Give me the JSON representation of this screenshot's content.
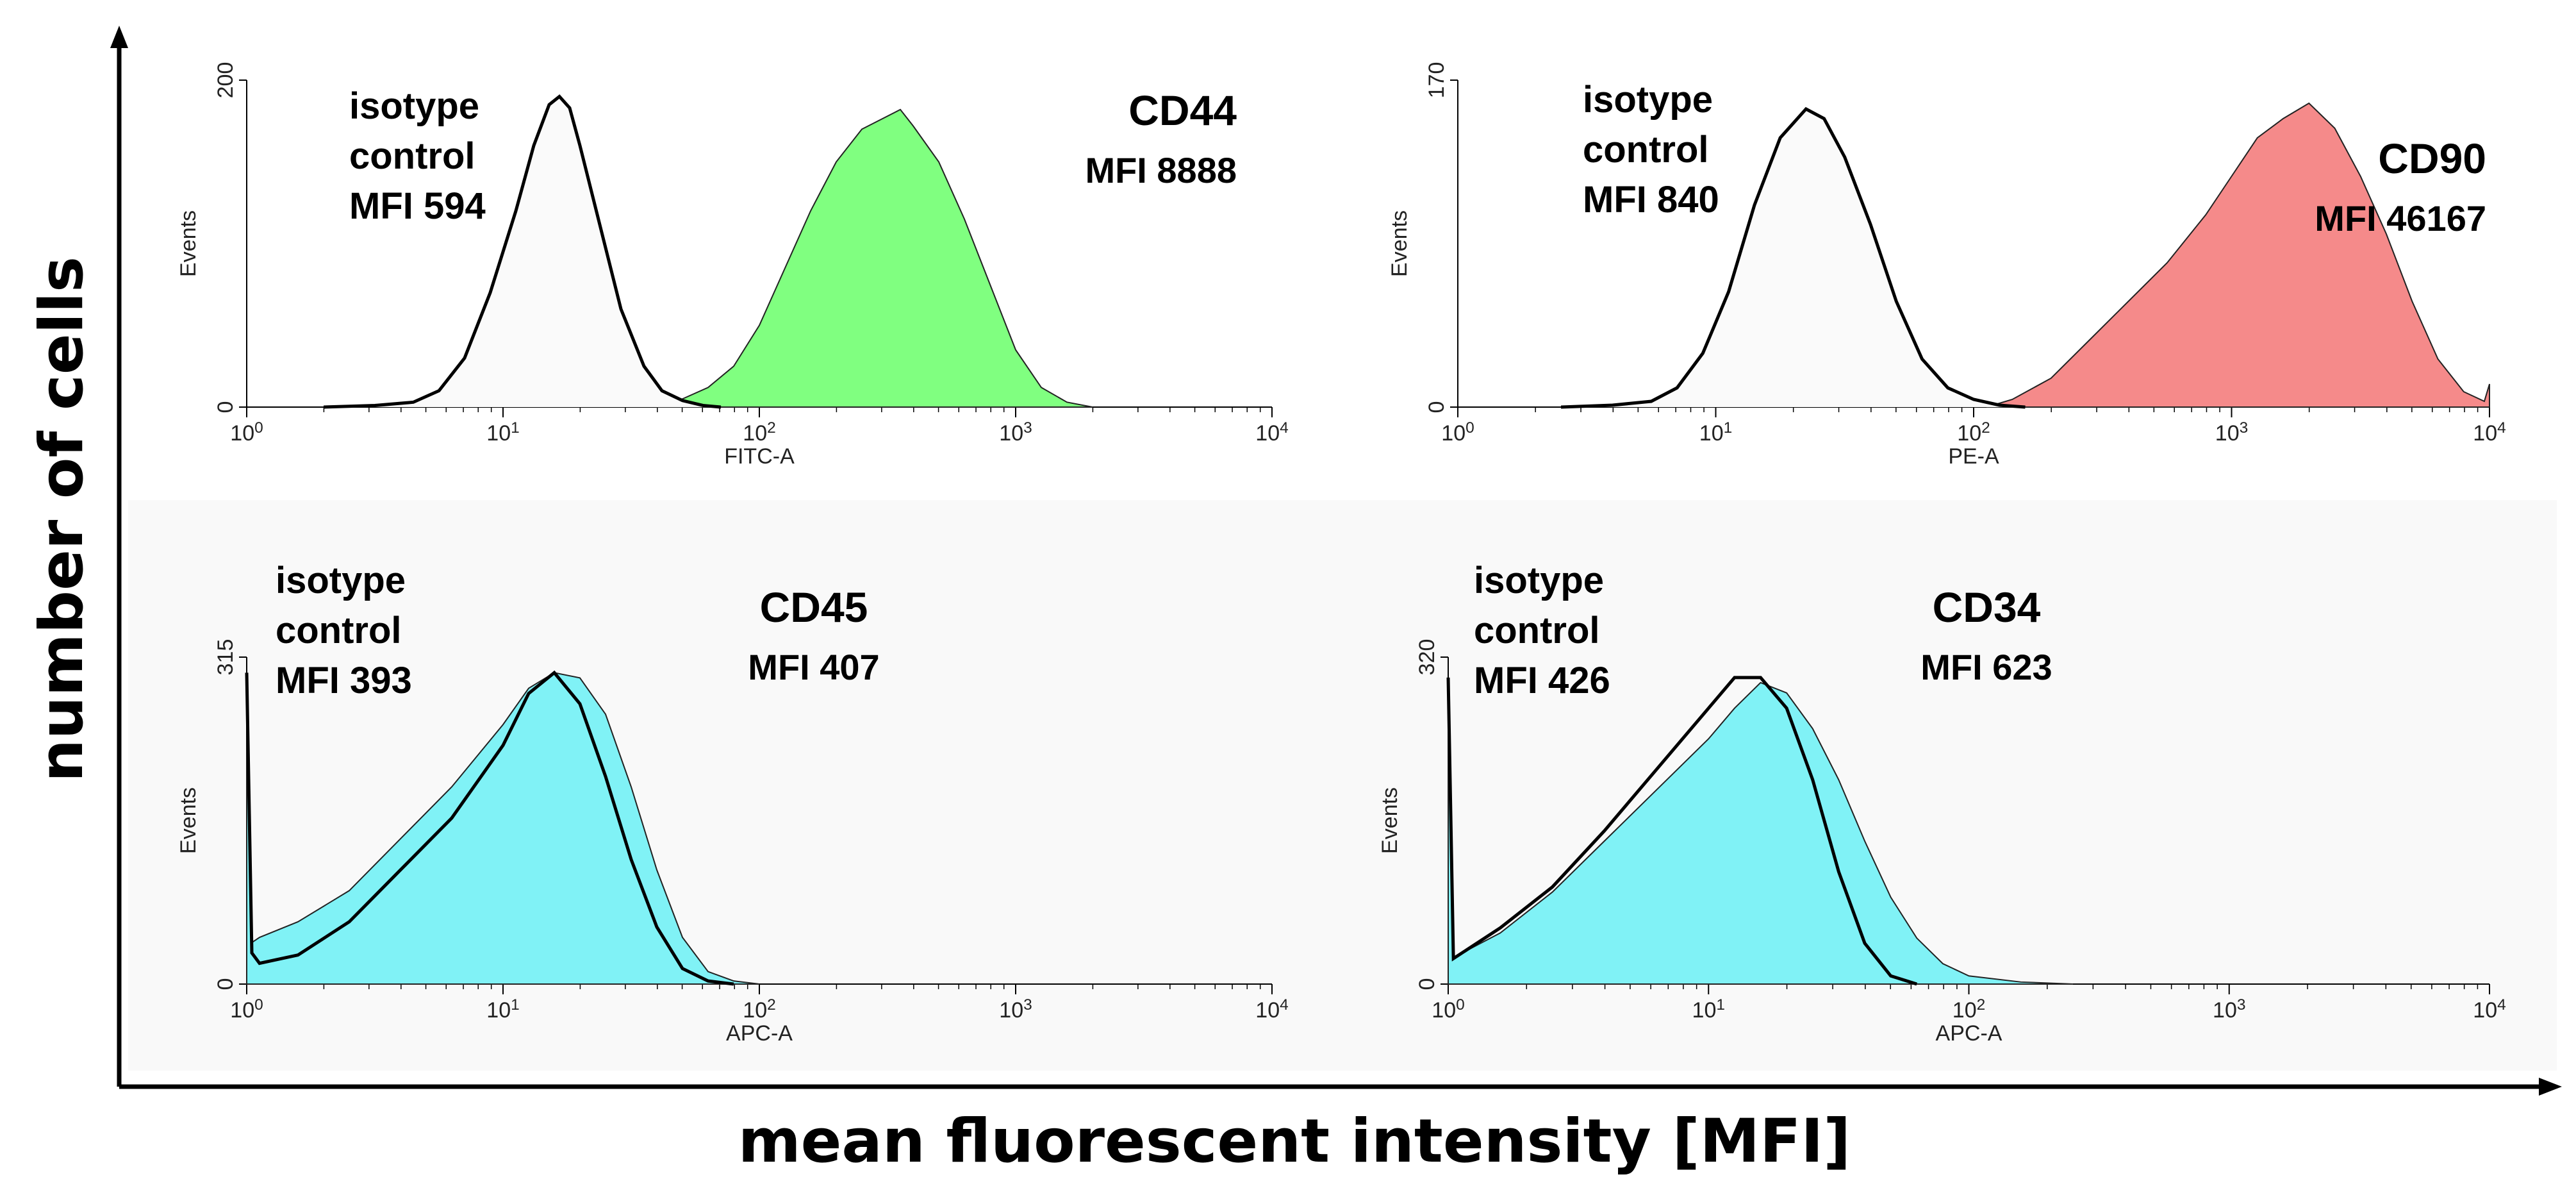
{
  "figure": {
    "ylabel": "number of cells",
    "xlabel": "mean fluorescent intensity [MFI]"
  },
  "chart_data": [
    {
      "type": "area",
      "id": "cd44",
      "marker": "CD44",
      "marker_mfi": "MFI 8888",
      "isotype_label": [
        "isotype",
        "control",
        "MFI 594"
      ],
      "channel": "FITC-A",
      "y_axis_label": "Events",
      "ylim": [
        0,
        200
      ],
      "y_ticks": [
        "0",
        "200"
      ],
      "x_scale": "log10",
      "xlim_log": [
        0,
        4
      ],
      "x_ticks": [
        {
          "base": "10",
          "exp": "0"
        },
        {
          "base": "10",
          "exp": "1"
        },
        {
          "base": "10",
          "exp": "2"
        },
        {
          "base": "10",
          "exp": "3"
        },
        {
          "base": "10",
          "exp": "4"
        }
      ],
      "fill_color": "#80ff80",
      "isotype": {
        "x_log": [
          0.3,
          0.5,
          0.65,
          0.75,
          0.85,
          0.95,
          1.05,
          1.12,
          1.18,
          1.22,
          1.26,
          1.3,
          1.38,
          1.46,
          1.55,
          1.62,
          1.7,
          1.78,
          1.85
        ],
        "y": [
          0,
          1,
          3,
          10,
          30,
          70,
          120,
          160,
          185,
          190,
          183,
          160,
          110,
          60,
          25,
          10,
          4,
          1,
          0
        ]
      },
      "sample": {
        "x_log": [
          1.6,
          1.7,
          1.8,
          1.9,
          2.0,
          2.1,
          2.2,
          2.3,
          2.4,
          2.5,
          2.55,
          2.6,
          2.7,
          2.8,
          2.9,
          3.0,
          3.1,
          3.2,
          3.3
        ],
        "y": [
          0,
          5,
          12,
          25,
          50,
          85,
          120,
          150,
          170,
          178,
          182,
          172,
          150,
          115,
          75,
          35,
          12,
          3,
          0
        ]
      }
    },
    {
      "type": "area",
      "id": "cd90",
      "marker": "CD90",
      "marker_mfi": "MFI 46167",
      "isotype_label": [
        "isotype",
        "control",
        "MFI 840"
      ],
      "channel": "PE-A",
      "y_axis_label": "Events",
      "ylim": [
        0,
        170
      ],
      "y_ticks": [
        "0",
        "170"
      ],
      "x_scale": "log10",
      "xlim_log": [
        0,
        4
      ],
      "x_ticks": [
        {
          "base": "10",
          "exp": "0"
        },
        {
          "base": "10",
          "exp": "1"
        },
        {
          "base": "10",
          "exp": "2"
        },
        {
          "base": "10",
          "exp": "3"
        },
        {
          "base": "10",
          "exp": "4"
        }
      ],
      "fill_color": "#f58a8a",
      "isotype": {
        "x_log": [
          0.4,
          0.6,
          0.75,
          0.85,
          0.95,
          1.05,
          1.15,
          1.25,
          1.35,
          1.42,
          1.5,
          1.6,
          1.7,
          1.8,
          1.9,
          2.0,
          2.1,
          2.2
        ],
        "y": [
          0,
          1,
          3,
          10,
          28,
          60,
          105,
          140,
          155,
          150,
          130,
          95,
          55,
          25,
          10,
          4,
          1,
          0
        ]
      },
      "sample": {
        "x_log": [
          2.05,
          2.15,
          2.3,
          2.45,
          2.6,
          2.75,
          2.9,
          3.0,
          3.1,
          3.2,
          3.3,
          3.4,
          3.5,
          3.6,
          3.7,
          3.8,
          3.9,
          3.98,
          4.0
        ],
        "y": [
          0,
          4,
          15,
          35,
          55,
          75,
          100,
          120,
          140,
          150,
          158,
          145,
          120,
          90,
          55,
          25,
          8,
          3,
          12
        ]
      }
    },
    {
      "type": "area",
      "id": "cd45",
      "marker": "CD45",
      "marker_mfi": "MFI 407",
      "isotype_label": [
        "isotype",
        "control",
        "MFI 393"
      ],
      "channel": "APC-A",
      "y_axis_label": "Events",
      "ylim": [
        0,
        315
      ],
      "y_ticks": [
        "0",
        "315"
      ],
      "x_scale": "log10",
      "xlim_log": [
        0,
        4
      ],
      "x_ticks": [
        {
          "base": "10",
          "exp": "0"
        },
        {
          "base": "10",
          "exp": "1"
        },
        {
          "base": "10",
          "exp": "2"
        },
        {
          "base": "10",
          "exp": "3"
        },
        {
          "base": "10",
          "exp": "4"
        }
      ],
      "fill_color": "#80f2f6",
      "isotype": {
        "x_log": [
          0.0,
          0.02,
          0.05,
          0.2,
          0.4,
          0.6,
          0.8,
          1.0,
          1.1,
          1.2,
          1.3,
          1.4,
          1.5,
          1.6,
          1.7,
          1.8,
          1.9
        ],
        "y": [
          300,
          30,
          20,
          28,
          60,
          110,
          160,
          230,
          280,
          300,
          270,
          200,
          120,
          55,
          15,
          3,
          0
        ]
      },
      "sample": {
        "x_log": [
          0.0,
          0.02,
          0.05,
          0.2,
          0.4,
          0.6,
          0.8,
          1.0,
          1.1,
          1.2,
          1.3,
          1.4,
          1.5,
          1.6,
          1.7,
          1.8,
          1.9,
          2.0
        ],
        "y": [
          300,
          40,
          45,
          60,
          90,
          140,
          190,
          250,
          285,
          300,
          295,
          260,
          190,
          110,
          45,
          12,
          3,
          0
        ]
      }
    },
    {
      "type": "area",
      "id": "cd34",
      "marker": "CD34",
      "marker_mfi": "MFI 623",
      "isotype_label": [
        "isotype",
        "control",
        "MFI 426"
      ],
      "channel": "APC-A",
      "y_axis_label": "Events",
      "ylim": [
        0,
        320
      ],
      "y_ticks": [
        "0",
        "320"
      ],
      "x_scale": "log10",
      "xlim_log": [
        0,
        4
      ],
      "x_ticks": [
        {
          "base": "10",
          "exp": "0"
        },
        {
          "base": "10",
          "exp": "1"
        },
        {
          "base": "10",
          "exp": "2"
        },
        {
          "base": "10",
          "exp": "3"
        },
        {
          "base": "10",
          "exp": "4"
        }
      ],
      "fill_color": "#80f2f6",
      "isotype": {
        "x_log": [
          0.0,
          0.02,
          0.05,
          0.2,
          0.4,
          0.6,
          0.8,
          0.9,
          1.0,
          1.1,
          1.2,
          1.3,
          1.4,
          1.5,
          1.6,
          1.7,
          1.8
        ],
        "y": [
          300,
          25,
          30,
          55,
          95,
          150,
          210,
          240,
          270,
          300,
          300,
          270,
          200,
          110,
          40,
          8,
          0
        ]
      },
      "sample": {
        "x_log": [
          0.0,
          0.02,
          0.05,
          0.2,
          0.4,
          0.6,
          0.8,
          1.0,
          1.1,
          1.2,
          1.3,
          1.4,
          1.5,
          1.6,
          1.7,
          1.8,
          1.9,
          2.0,
          2.2,
          2.4
        ],
        "y": [
          300,
          25,
          30,
          50,
          90,
          140,
          190,
          240,
          270,
          295,
          285,
          250,
          200,
          140,
          85,
          45,
          20,
          8,
          2,
          0
        ]
      }
    }
  ]
}
